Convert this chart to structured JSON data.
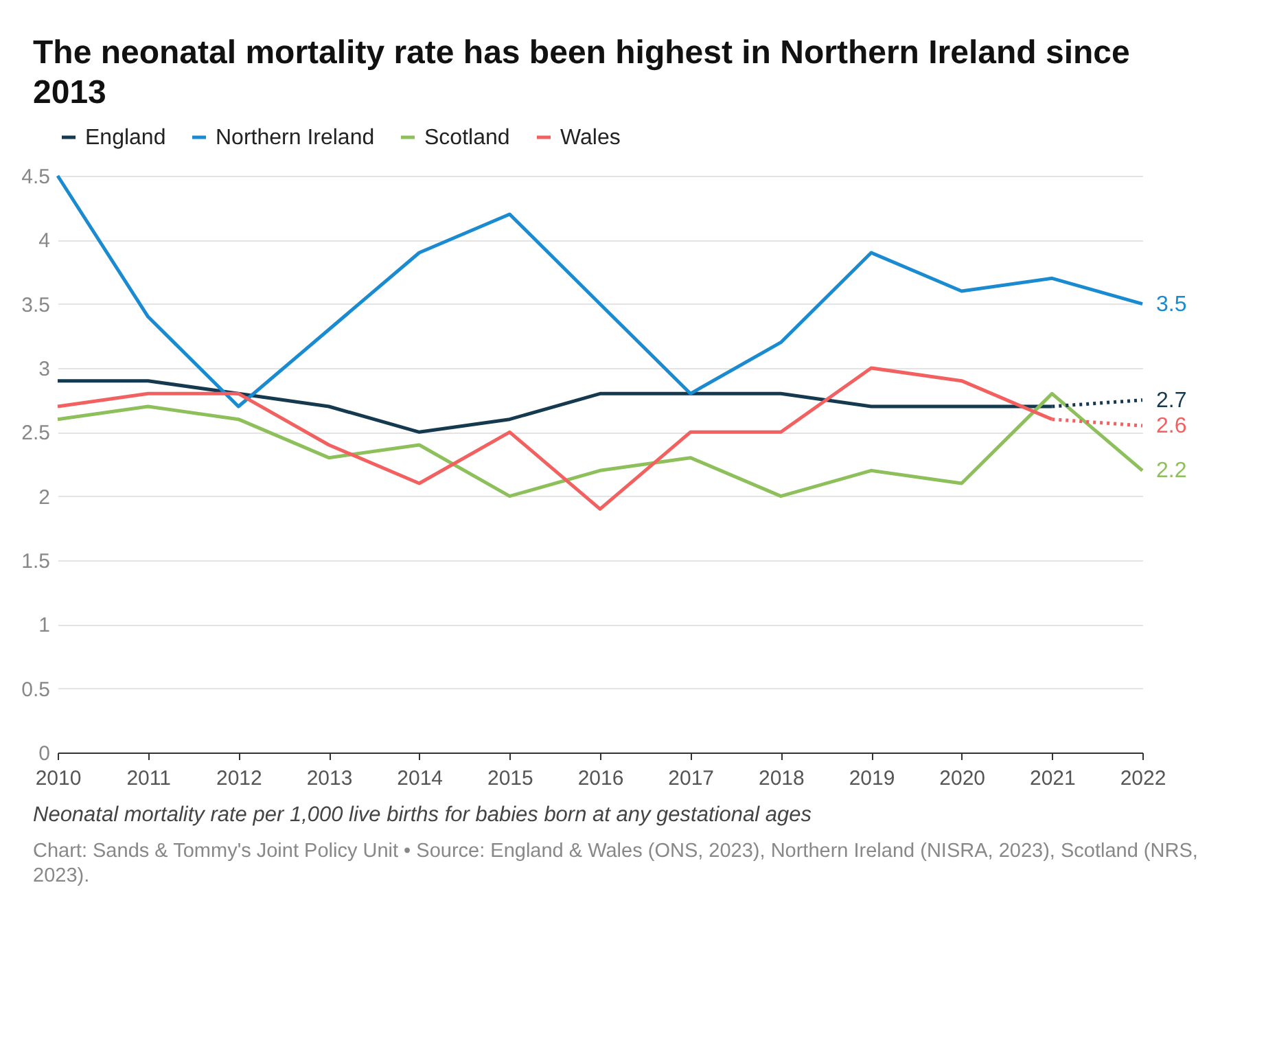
{
  "chart_data": {
    "type": "line",
    "title": "The neonatal mortality rate has been highest in Northern Ireland since 2013",
    "categories": [
      "2010",
      "2011",
      "2012",
      "2013",
      "2014",
      "2015",
      "2016",
      "2017",
      "2018",
      "2019",
      "2020",
      "2021",
      "2022"
    ],
    "series": [
      {
        "name": "England",
        "color": "#15394f",
        "values": [
          2.9,
          2.9,
          2.8,
          2.7,
          2.5,
          2.6,
          2.8,
          2.8,
          2.8,
          2.7,
          2.7,
          2.7,
          null
        ]
      },
      {
        "name": "Northern Ireland",
        "color": "#1a8bd1",
        "values": [
          4.5,
          3.4,
          2.7,
          3.3,
          3.9,
          4.2,
          3.5,
          2.8,
          3.2,
          3.9,
          3.6,
          3.7,
          3.5
        ],
        "value_labels": [
          null,
          null,
          null,
          null,
          null,
          null,
          null,
          null,
          null,
          null,
          null,
          null,
          "3.5"
        ]
      },
      {
        "name": "Scotland",
        "color": "#8dc05a",
        "values": [
          2.6,
          2.7,
          2.6,
          2.3,
          2.4,
          2.0,
          2.2,
          2.3,
          2.0,
          2.2,
          2.1,
          2.8,
          2.2
        ],
        "value_labels": [
          null,
          null,
          null,
          null,
          null,
          null,
          null,
          null,
          null,
          null,
          null,
          null,
          "2.2"
        ]
      },
      {
        "name": "Wales",
        "color": "#f26060",
        "values": [
          2.7,
          2.8,
          2.8,
          2.4,
          2.1,
          2.5,
          1.9,
          2.5,
          2.5,
          3.0,
          2.9,
          2.6,
          null
        ]
      },
      {
        "color": "#15394f",
        "line_style": "dotted",
        "values": [
          null,
          null,
          null,
          null,
          null,
          null,
          null,
          null,
          null,
          null,
          null,
          2.7,
          2.75
        ],
        "value_labels": [
          null,
          null,
          null,
          null,
          null,
          null,
          null,
          null,
          null,
          null,
          null,
          null,
          "2.7"
        ]
      },
      {
        "color": "#f26060",
        "line_style": "dotted",
        "values": [
          null,
          null,
          null,
          null,
          null,
          null,
          null,
          null,
          null,
          null,
          null,
          2.6,
          2.55
        ],
        "value_labels": [
          null,
          null,
          null,
          null,
          null,
          null,
          null,
          null,
          null,
          null,
          null,
          null,
          "2.6"
        ]
      }
    ],
    "ylim": [
      0,
      4.5
    ],
    "yticks": [
      0,
      0.5,
      1,
      1.5,
      2,
      2.5,
      3,
      3.5,
      4,
      4.5
    ],
    "grid": "y",
    "legend": "top left",
    "line_style": "solid",
    "annotations": [
      "Neonatal mortality rate per 1,000 live births for babies born at any gestational ages",
      "Chart: Sands & Tommy's Joint Policy Unit • Source: England & Wales (ONS, 2023), Northern Ireland (NISRA, 2023), Scotland (NRS, 2023)."
    ]
  }
}
